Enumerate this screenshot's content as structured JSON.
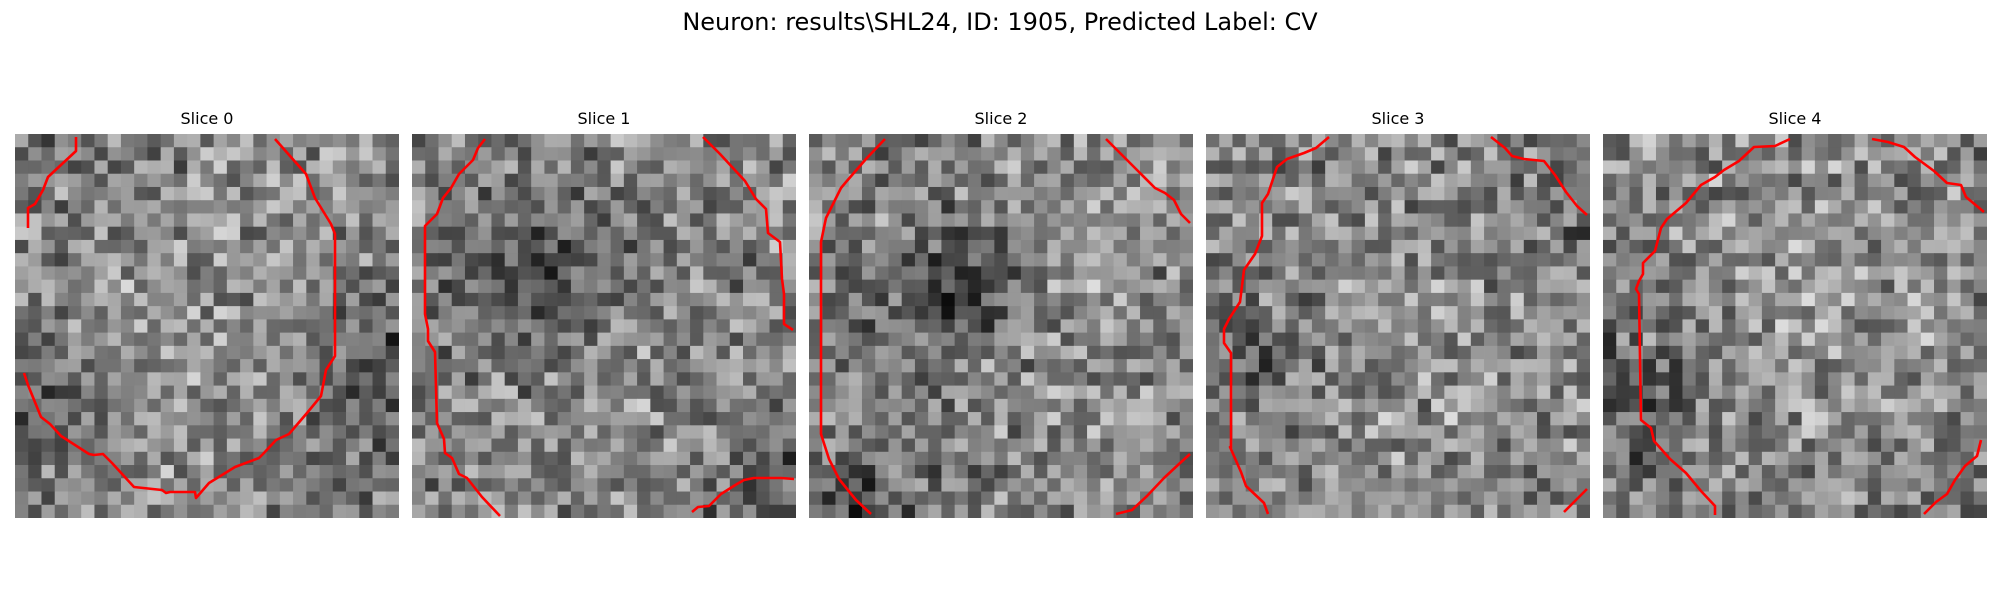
{
  "figure": {
    "title": "Neuron: results\\SHL24, ID: 1905, Predicted Label: CV"
  },
  "colors": {
    "contour": "#ff0000",
    "background": "#ffffff"
  },
  "image_grid": {
    "rows": 29,
    "cols": 29,
    "colormap": "gray"
  },
  "panels": [
    {
      "title": "Slice 0"
    },
    {
      "title": "Slice 1"
    },
    {
      "title": "Slice 2"
    },
    {
      "title": "Slice 3"
    },
    {
      "title": "Slice 4"
    }
  ]
}
